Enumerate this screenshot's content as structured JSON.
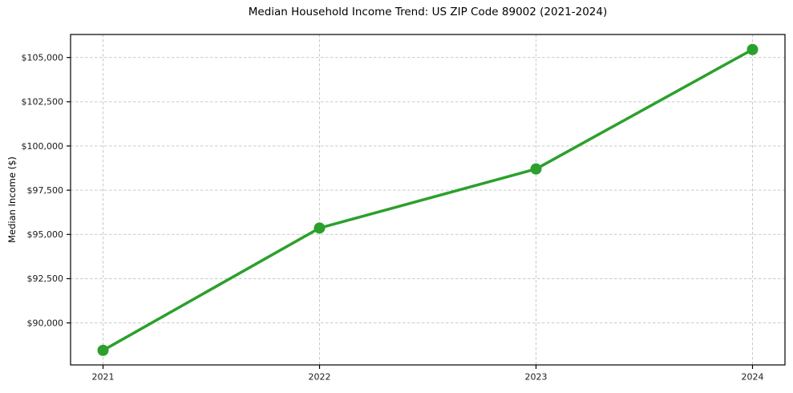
{
  "chart_data": {
    "type": "line",
    "title": "Median Household Income Trend: US ZIP Code 89002 (2021-2024)",
    "xlabel": "",
    "ylabel": "Median Income ($)",
    "categories": [
      "2021",
      "2022",
      "2023",
      "2024"
    ],
    "series": [
      {
        "name": "Median Household Income",
        "values": [
          88450,
          95360,
          98700,
          105450
        ],
        "color": "#2ca02c",
        "marker": "circle",
        "marker_radius": 7,
        "line_width": 3.5
      }
    ],
    "ylim": [
      87625,
      106300
    ],
    "yticks": [
      {
        "value": 90000,
        "label": "$90,000"
      },
      {
        "value": 92500,
        "label": "$92,500"
      },
      {
        "value": 95000,
        "label": "$95,000"
      },
      {
        "value": 97500,
        "label": "$97,500"
      },
      {
        "value": 100000,
        "label": "$100,000"
      },
      {
        "value": 102500,
        "label": "$102,500"
      },
      {
        "value": 105000,
        "label": "$105,000"
      }
    ],
    "grid": true,
    "grid_style": "dashed",
    "grid_color": "#c9c9c9",
    "spine_color": "#000000",
    "tick_text_color": "#1a1a1a",
    "background": "#ffffff",
    "legend": "none"
  }
}
